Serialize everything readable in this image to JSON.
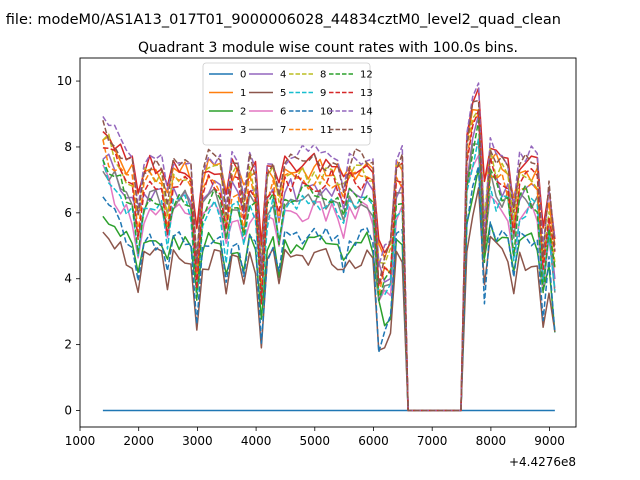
{
  "chart_data": {
    "type": "line",
    "suptitle": "n file: modeM0/AS1A13_017T01_9000006028_44834cztM0_level2_quad_clean",
    "title": "Quadrant 3 module wise count rates with 100.0s bins.",
    "xlabel": "",
    "ylabel": "",
    "x_offset_label": "+4.4276e8",
    "xlim": [
      1000,
      9450
    ],
    "ylim": [
      -0.5,
      10.7
    ],
    "xticks": [
      1000,
      2000,
      3000,
      4000,
      5000,
      6000,
      7000,
      8000,
      9000
    ],
    "xtick_labels": [
      "1000",
      "2000",
      "3000",
      "4000",
      "5000",
      "6000",
      "7000",
      "8000",
      "9000"
    ],
    "yticks": [
      0,
      2,
      4,
      6,
      8,
      10
    ],
    "ytick_labels": [
      "0",
      "2",
      "4",
      "6",
      "8",
      "10"
    ],
    "grid": false,
    "legend_position": "top-center",
    "legend_columns": 4,
    "x_start": 1390,
    "x_step": 100,
    "n_points": 78,
    "gap_range": [
      6500,
      7500
    ],
    "series": [
      {
        "name": "0",
        "color": "#1f77b4",
        "dashed": false,
        "level": 0.0,
        "flat": true
      },
      {
        "name": "1",
        "color": "#ff7f0e",
        "dashed": false,
        "level": 7.3
      },
      {
        "name": "2",
        "color": "#2ca02c",
        "dashed": false,
        "level": 5.1
      },
      {
        "name": "3",
        "color": "#d62728",
        "dashed": false,
        "level": 7.5
      },
      {
        "name": "4",
        "color": "#9467bd",
        "dashed": false,
        "level": 6.7
      },
      {
        "name": "5",
        "color": "#8c564b",
        "dashed": false,
        "level": 4.6
      },
      {
        "name": "6",
        "color": "#e377c2",
        "dashed": false,
        "level": 6.0
      },
      {
        "name": "7",
        "color": "#7f7f7f",
        "dashed": false,
        "level": 6.4
      },
      {
        "name": "8",
        "color": "#bcbd22",
        "dashed": true,
        "level": 7.2
      },
      {
        "name": "9",
        "color": "#17becf",
        "dashed": true,
        "level": 6.2
      },
      {
        "name": "10",
        "color": "#1f77b4",
        "dashed": true,
        "level": 5.2
      },
      {
        "name": "11",
        "color": "#ff7f0e",
        "dashed": true,
        "level": 6.9
      },
      {
        "name": "12",
        "color": "#2ca02c",
        "dashed": true,
        "level": 6.5
      },
      {
        "name": "13",
        "color": "#d62728",
        "dashed": true,
        "level": 7.0
      },
      {
        "name": "14",
        "color": "#9467bd",
        "dashed": true,
        "level": 7.8
      },
      {
        "name": "15",
        "color": "#8c564b",
        "dashed": true,
        "level": 7.6
      }
    ]
  }
}
